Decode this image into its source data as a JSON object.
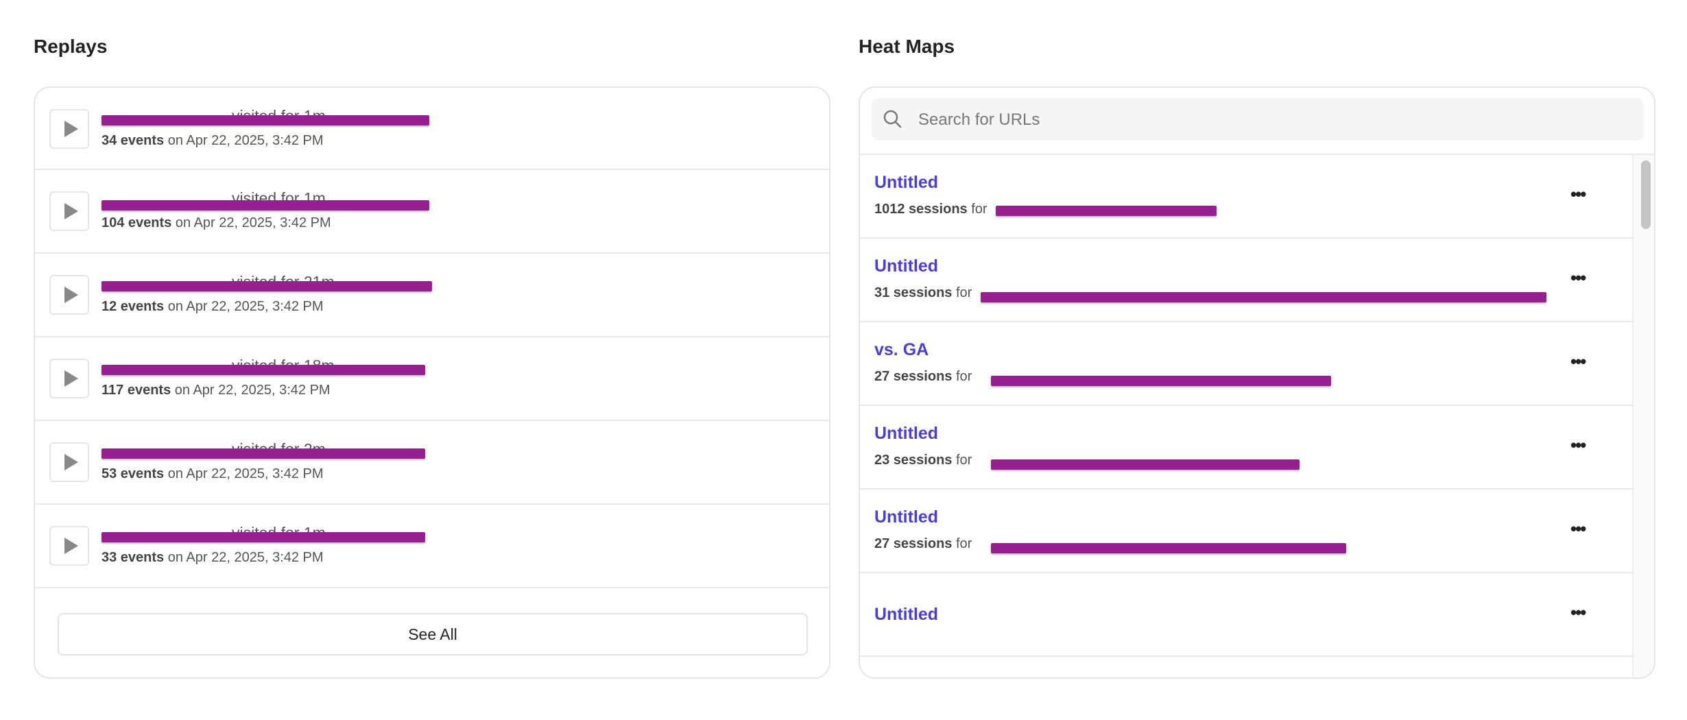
{
  "replays": {
    "title": "Replays",
    "items": [
      {
        "visited": "visited for 1m",
        "events": "34 events",
        "date": "on Apr 22, 2025, 3:42 PM"
      },
      {
        "visited": "visited for 1m",
        "events": "104 events",
        "date": "on Apr 22, 2025, 3:42 PM"
      },
      {
        "visited": "visited for 21m",
        "events": "12 events",
        "date": "on Apr 22, 2025, 3:42 PM"
      },
      {
        "visited": "visited for 18m",
        "events": "117 events",
        "date": "on Apr 22, 2025, 3:42 PM"
      },
      {
        "visited": "visited for 2m",
        "events": "53 events",
        "date": "on Apr 22, 2025, 3:42 PM"
      },
      {
        "visited": "visited for 1m",
        "events": "33 events",
        "date": "on Apr 22, 2025, 3:42 PM"
      }
    ],
    "see_all_label": "See All"
  },
  "heatmaps": {
    "title": "Heat Maps",
    "search_placeholder": "Search for URLs",
    "items": [
      {
        "title": "Untitled",
        "sessions": "1012 sessions",
        "for": "for"
      },
      {
        "title": "Untitled",
        "sessions": "31 sessions",
        "for": "for"
      },
      {
        "title": "vs. GA",
        "sessions": "27 sessions",
        "for": "for"
      },
      {
        "title": "Untitled",
        "sessions": "23 sessions",
        "for": "for"
      },
      {
        "title": "Untitled",
        "sessions": "27 sessions",
        "for": "for"
      },
      {
        "title": "Untitled"
      }
    ],
    "more_label": "•••"
  },
  "colors": {
    "link": "#4a3de0",
    "redaction": "#962090"
  },
  "icons": {
    "play": "play-icon",
    "search": "search-icon",
    "more": "more-horizontal-icon"
  }
}
